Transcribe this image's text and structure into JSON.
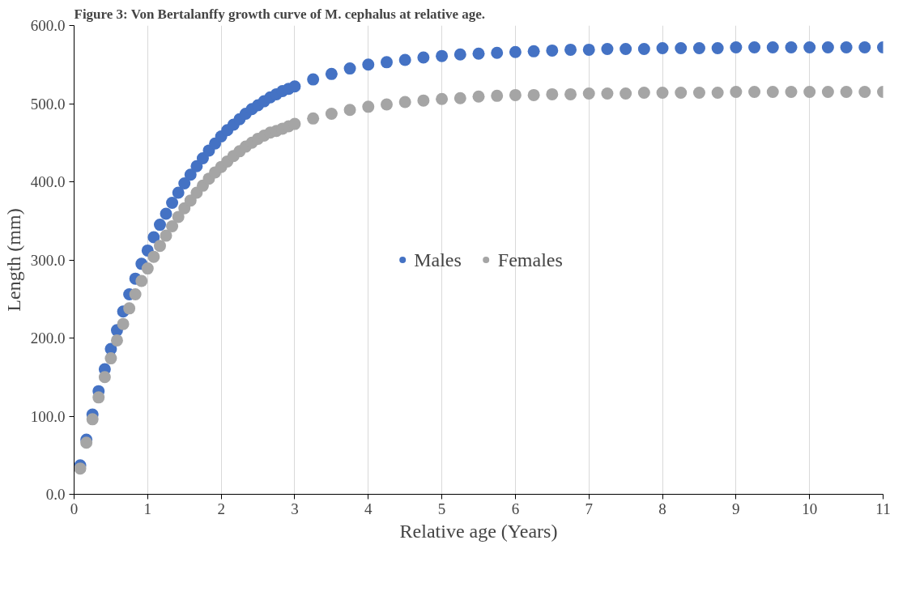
{
  "chart_data": {
    "type": "scatter",
    "title": "Figure 3: Von Bertalanffy growth curve of M. cephalus at relative age.",
    "xlabel": "Relative age (Years)",
    "ylabel": "Length (mm)",
    "x": [
      0.083,
      0.167,
      0.25,
      0.333,
      0.417,
      0.5,
      0.583,
      0.667,
      0.75,
      0.833,
      0.917,
      1,
      1.083,
      1.167,
      1.25,
      1.333,
      1.417,
      1.5,
      1.583,
      1.667,
      1.75,
      1.833,
      1.917,
      2,
      2.083,
      2.167,
      2.25,
      2.333,
      2.417,
      2.5,
      2.583,
      2.667,
      2.75,
      2.833,
      2.917,
      3,
      3.25,
      3.5,
      3.75,
      4,
      4.25,
      4.5,
      4.75,
      5,
      5.25,
      5.5,
      5.75,
      6,
      6.25,
      6.5,
      6.75,
      7,
      7.25,
      7.5,
      7.75,
      8,
      8.25,
      8.5,
      8.75,
      9,
      9.25,
      9.5,
      9.75,
      10,
      10.25,
      10.5,
      10.75,
      11
    ],
    "series": [
      {
        "name": "Males",
        "color": "#4472c4",
        "values": [
          37,
          70,
          102,
          132,
          160,
          186,
          210,
          234,
          256,
          276,
          295,
          312,
          329,
          345,
          359,
          373,
          386,
          398,
          409,
          420,
          430,
          440,
          449,
          458,
          466,
          473,
          480,
          487,
          493,
          498,
          503,
          508,
          512,
          516,
          519,
          522,
          531,
          538,
          545,
          550,
          553,
          556,
          559,
          561,
          563,
          564,
          565,
          566,
          567,
          568,
          569,
          569,
          570,
          570,
          570,
          571,
          571,
          571,
          571,
          572,
          572,
          572,
          572,
          572,
          572,
          572,
          572,
          572
        ]
      },
      {
        "name": "Females",
        "color": "#a5a5a5",
        "values": [
          33,
          66,
          96,
          124,
          150,
          174,
          197,
          218,
          238,
          256,
          273,
          289,
          304,
          318,
          331,
          343,
          355,
          366,
          376,
          386,
          395,
          404,
          412,
          419,
          426,
          433,
          439,
          445,
          450,
          455,
          459,
          463,
          465,
          468,
          471,
          474,
          481,
          487,
          492,
          496,
          499,
          502,
          504,
          506,
          507,
          509,
          510,
          511,
          511,
          512,
          512,
          513,
          513,
          513,
          514,
          514,
          514,
          514,
          514,
          515,
          515,
          515,
          515,
          515,
          515,
          515,
          515,
          515
        ]
      }
    ],
    "xlim": [
      0,
      11
    ],
    "xticks": [
      0,
      1,
      2,
      3,
      4,
      5,
      6,
      7,
      8,
      9,
      10,
      11
    ],
    "ylim": [
      0,
      600
    ],
    "yticks": [
      {
        "value": 0,
        "label": "0.0"
      },
      {
        "value": 100,
        "label": "100.0"
      },
      {
        "value": 200,
        "label": "200.0"
      },
      {
        "value": 300,
        "label": "300.0"
      },
      {
        "value": 400,
        "label": "400.0"
      },
      {
        "value": 500,
        "label": "500.0"
      },
      {
        "value": 600,
        "label": "600.0"
      }
    ],
    "grid": "x",
    "legend": "center",
    "marker": "circle"
  }
}
